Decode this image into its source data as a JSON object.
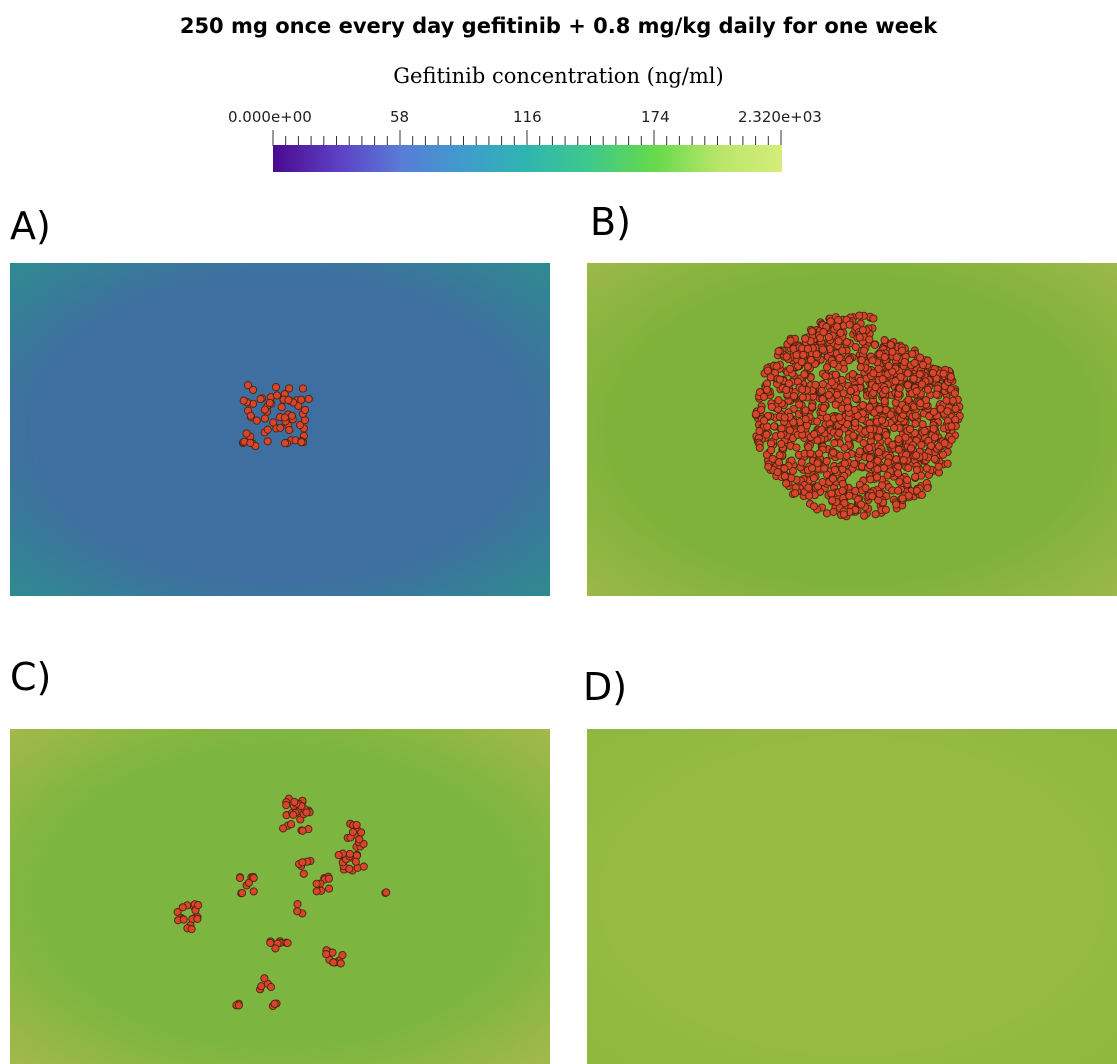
{
  "figure": {
    "title": "250 mg once every day gefitinib + 0.8 mg/kg daily for one week",
    "colorbar": {
      "title": "Gefitinib concentration (ng/ml)",
      "min_label": "0.000e+00",
      "tick_labels": [
        "58",
        "116",
        "174"
      ],
      "max_label_main": "2.320e",
      "max_label_exp": "+03",
      "colormap": [
        "#4b0a8f",
        "#5d3ec4",
        "#5a7bd6",
        "#3f9ccc",
        "#2fb5b0",
        "#3fc98a",
        "#66d94c",
        "#b8e66a",
        "#d6ec7a"
      ]
    },
    "panels": [
      {
        "label": "A)",
        "background": "#3f6fa0",
        "edge": "#2f8a90",
        "cell_cluster": "small-square"
      },
      {
        "label": "B)",
        "background": "#7fb23a",
        "edge": "#9bb848",
        "cell_cluster": "large-disc"
      },
      {
        "label": "C)",
        "background": "#7cb640",
        "edge": "#a3b84a",
        "cell_cluster": "scattered"
      },
      {
        "label": "D)",
        "background": "#96ba44",
        "edge": "#8fb83e",
        "cell_cluster": "none"
      }
    ],
    "cell_color": "#d9452a",
    "cell_outline": "#4a2410"
  }
}
